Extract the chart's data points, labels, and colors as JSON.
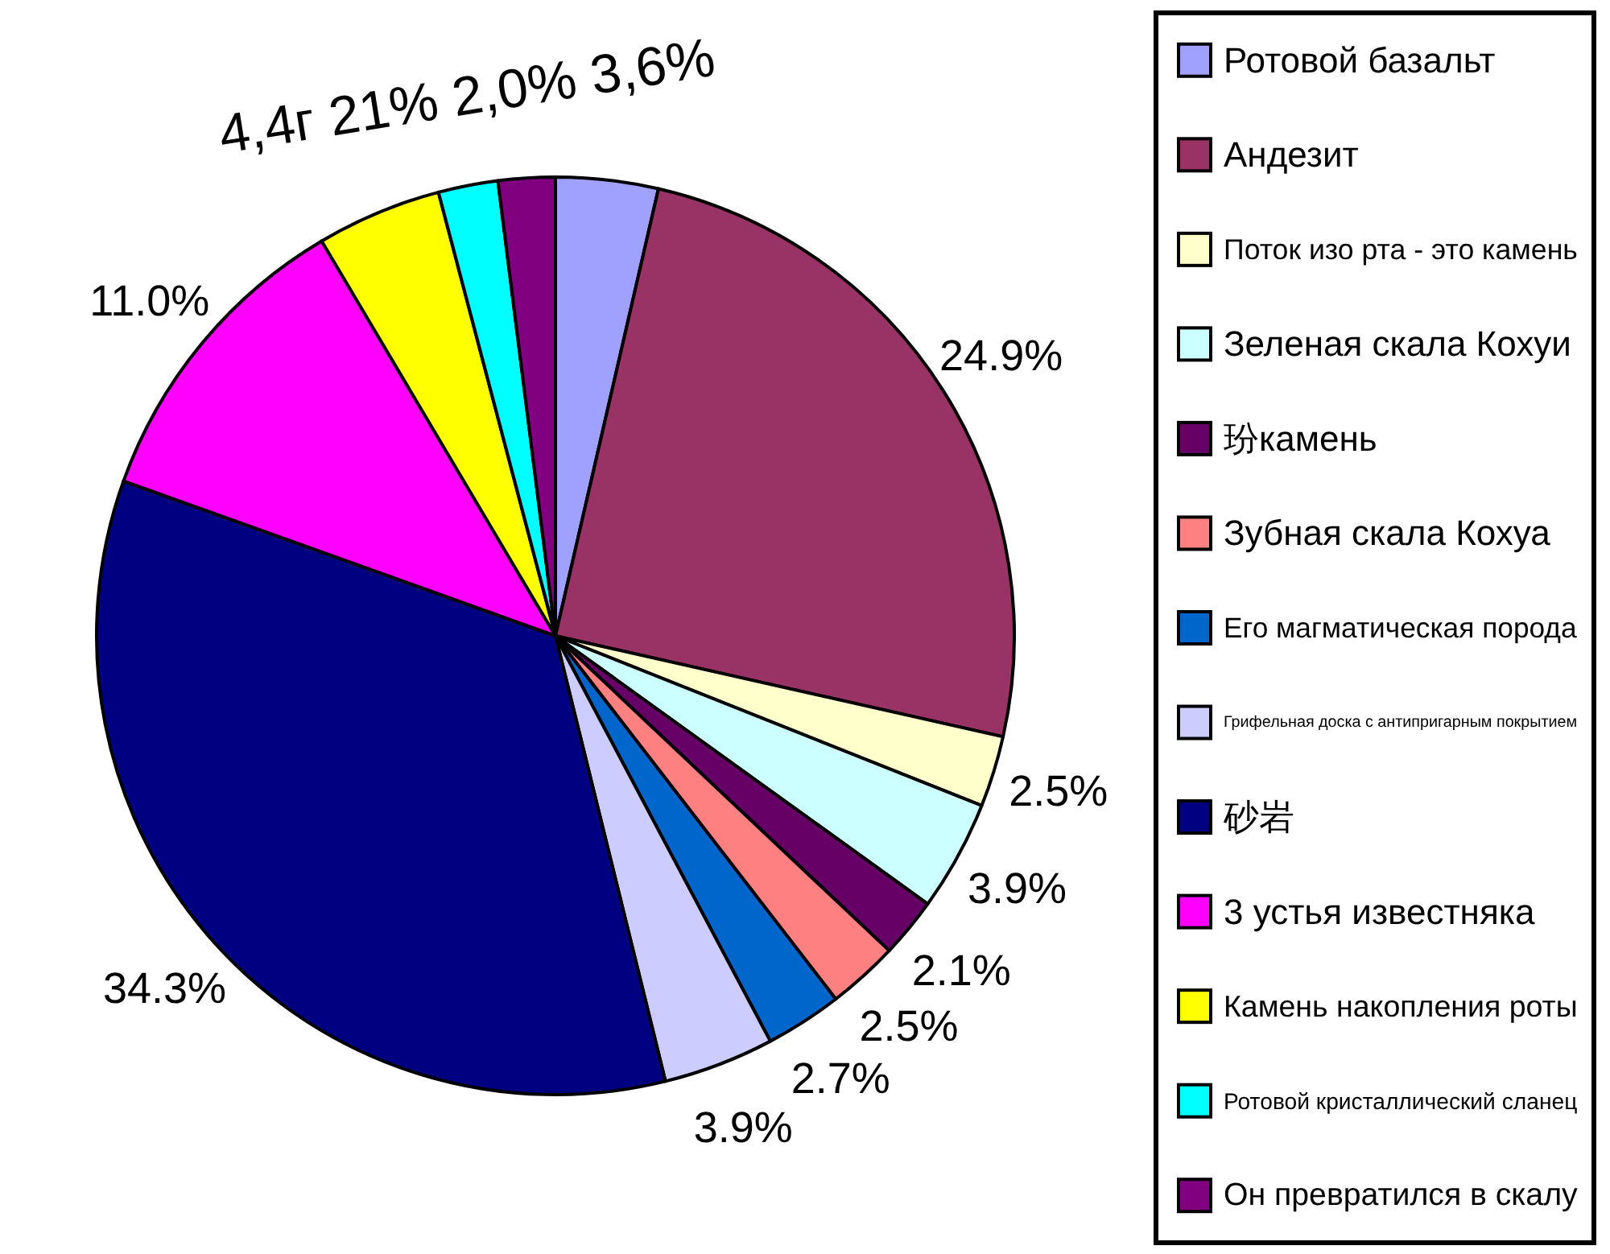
{
  "chart_data": {
    "type": "pie",
    "categories": [
      "Ротовой базальт",
      "Андезит",
      "Поток изо рта - это камень",
      "Зеленая скала Кохуи",
      "玢камень",
      "Зубная скала Кохуа",
      "Его магматическая порода",
      "Грифельная доска с антипригарным покрытием",
      "砂岩",
      "3 устья известняка",
      "Камень накопления роты",
      "Ротовой кристаллический сланец",
      "Он превратился в скалу"
    ],
    "values": [
      3.6,
      24.9,
      2.5,
      3.9,
      2.1,
      2.5,
      2.7,
      3.9,
      34.3,
      11.0,
      4.4,
      2.1,
      2.0
    ],
    "colors": [
      "#a0a0ff",
      "#993366",
      "#ffffcc",
      "#ccffff",
      "#660066",
      "#ff8080",
      "#0066cc",
      "#ccccff",
      "#000080",
      "#ff00ff",
      "#ffff00",
      "#00ffff",
      "#800080"
    ],
    "value_labels": [
      null,
      "24.9%",
      "2.5%",
      "3.9%",
      "2.1%",
      "2.5%",
      "2.7%",
      "3.9%",
      "34.3%",
      "11.0%",
      null,
      null,
      null
    ],
    "annotations": [
      "4,4г 21% 2,0% 3,6%"
    ],
    "legend": "right"
  }
}
